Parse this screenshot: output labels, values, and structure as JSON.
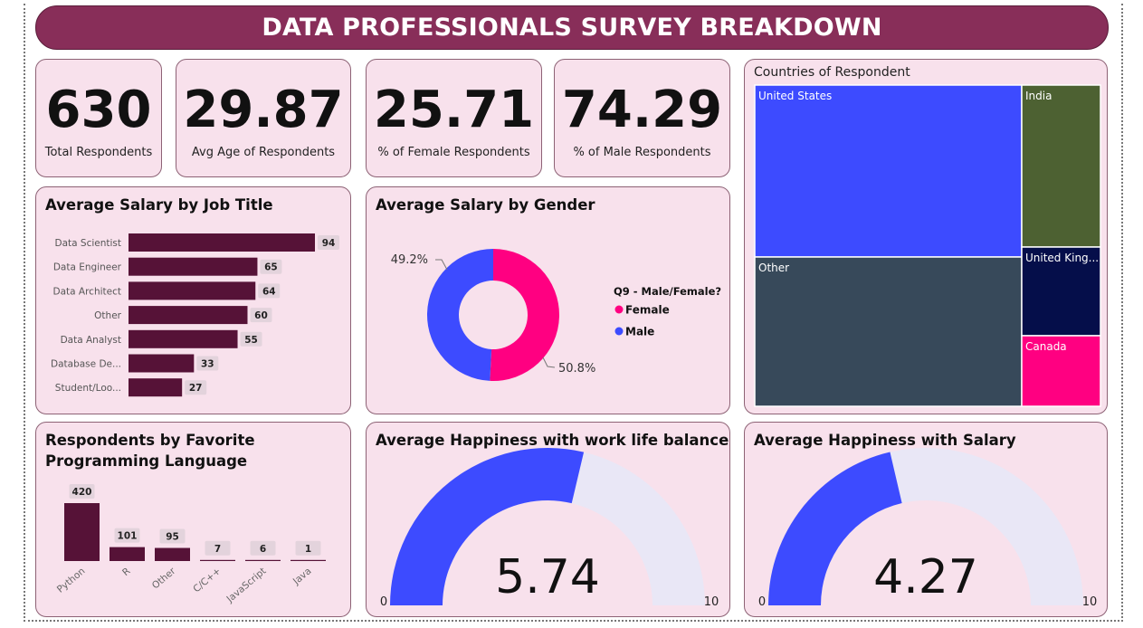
{
  "title": "DATA PROFESSIONALS SURVEY BREAKDOWN",
  "kpis": [
    {
      "value": "630",
      "label": "Total Respondents"
    },
    {
      "value": "29.87",
      "label": "Avg Age of Respondents"
    },
    {
      "value": "25.71",
      "label": "% of Female Respondents"
    },
    {
      "value": "74.29",
      "label": "% of Male Respondents"
    }
  ],
  "colors": {
    "accent": "#882E59",
    "bar": "#561237",
    "female": "#FF0081",
    "male": "#3D4BFF",
    "gauge_track": "#E9E7F6"
  },
  "chart_data": [
    {
      "type": "bar",
      "orientation": "horizontal",
      "title": "Average Salary by Job Title",
      "categories": [
        "Data Scientist",
        "Data Engineer",
        "Data Architect",
        "Other",
        "Data Analyst",
        "Database De...",
        "Student/Loo..."
      ],
      "values": [
        94,
        65,
        64,
        60,
        55,
        33,
        27
      ],
      "xlim": [
        0,
        94
      ]
    },
    {
      "type": "pie",
      "donut": true,
      "title": "Average Salary by Gender",
      "legend_title": "Q9 - Male/Female?",
      "legend_position": "right",
      "categories": [
        "Female",
        "Male"
      ],
      "values": [
        50.8,
        49.2
      ],
      "labels": [
        "50.8%",
        "49.2%"
      ]
    },
    {
      "type": "treemap",
      "title": "Countries of Respondent",
      "categories": [
        "United States",
        "Other",
        "India",
        "United King...",
        "Canada"
      ],
      "colors": [
        "#3D4BFF",
        "#37495A",
        "#4D6132",
        "#050E4A",
        "#FF0081"
      ]
    },
    {
      "type": "bar",
      "title": "Respondents by Favorite Programming Language",
      "categories": [
        "Python",
        "R",
        "Other",
        "C/C++",
        "JavaScript",
        "Java"
      ],
      "values": [
        420,
        101,
        95,
        7,
        6,
        1
      ],
      "ylim": [
        0,
        420
      ]
    },
    {
      "type": "gauge",
      "title": "Average Happiness with work life balance",
      "value": 5.74,
      "value_label": "5.74",
      "min": 0,
      "max": 10,
      "min_label": "0",
      "max_label": "10"
    },
    {
      "type": "gauge",
      "title": "Average Happiness with Salary",
      "value": 4.27,
      "value_label": "4.27",
      "min": 0,
      "max": 10,
      "min_label": "0",
      "max_label": "10"
    }
  ]
}
